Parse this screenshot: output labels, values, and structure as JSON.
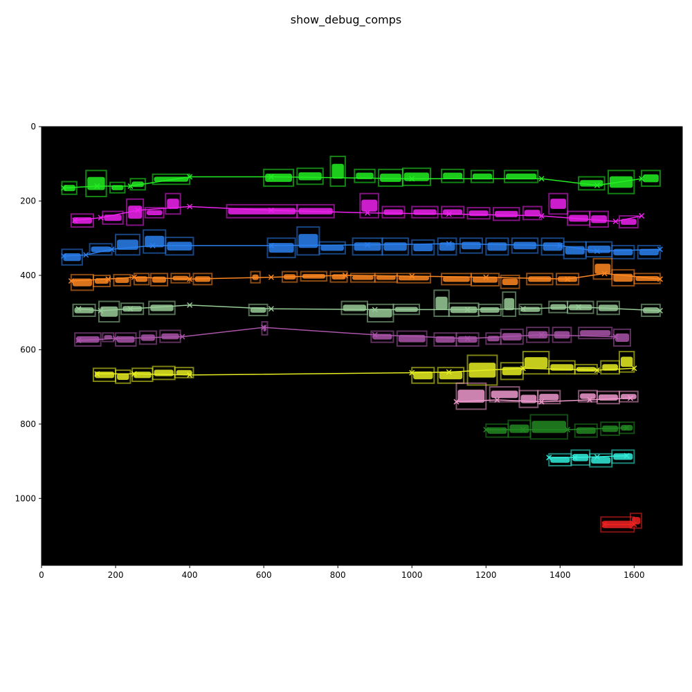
{
  "chart_data": {
    "type": "scatter",
    "title": "show_debug_comps",
    "xlabel": "",
    "ylabel": "",
    "xlim": [
      0,
      1730
    ],
    "ylim": [
      1180,
      0
    ],
    "y_inverted": true,
    "grid": false,
    "background": "#000000",
    "x_ticks": [
      0,
      200,
      400,
      600,
      800,
      1000,
      1200,
      1400,
      1600
    ],
    "y_ticks": [
      0,
      200,
      400,
      600,
      800,
      1000
    ],
    "lines": [
      {
        "color": "#22ee22",
        "points": [
          [
            60,
            165
          ],
          [
            150,
            160
          ],
          [
            240,
            160
          ],
          [
            400,
            135
          ],
          [
            620,
            135
          ],
          [
            1000,
            140
          ],
          [
            1350,
            140
          ],
          [
            1500,
            158
          ],
          [
            1620,
            140
          ]
        ],
        "boxes": [
          [
            55,
            148,
            95,
            182
          ],
          [
            120,
            118,
            175,
            188
          ],
          [
            185,
            150,
            225,
            178
          ],
          [
            240,
            140,
            280,
            170
          ],
          [
            300,
            128,
            400,
            155
          ],
          [
            600,
            115,
            680,
            160
          ],
          [
            690,
            112,
            760,
            155
          ],
          [
            780,
            80,
            820,
            160
          ],
          [
            845,
            115,
            900,
            150
          ],
          [
            910,
            115,
            975,
            160
          ],
          [
            975,
            112,
            1050,
            158
          ],
          [
            1080,
            115,
            1140,
            150
          ],
          [
            1160,
            118,
            1220,
            150
          ],
          [
            1250,
            118,
            1340,
            150
          ],
          [
            1450,
            135,
            1520,
            170
          ],
          [
            1530,
            118,
            1600,
            180
          ],
          [
            1620,
            118,
            1670,
            160
          ]
        ]
      },
      {
        "color": "#ee22ee",
        "points": [
          [
            90,
            252
          ],
          [
            160,
            245
          ],
          [
            260,
            225
          ],
          [
            400,
            215
          ],
          [
            620,
            225
          ],
          [
            880,
            232
          ],
          [
            1100,
            235
          ],
          [
            1350,
            240
          ],
          [
            1550,
            255
          ],
          [
            1620,
            240
          ]
        ],
        "boxes": [
          [
            80,
            235,
            140,
            270
          ],
          [
            165,
            228,
            220,
            262
          ],
          [
            230,
            195,
            275,
            265
          ],
          [
            280,
            218,
            330,
            245
          ],
          [
            335,
            180,
            375,
            235
          ],
          [
            500,
            210,
            690,
            245
          ],
          [
            690,
            210,
            790,
            245
          ],
          [
            860,
            180,
            910,
            245
          ],
          [
            920,
            215,
            980,
            245
          ],
          [
            1000,
            215,
            1070,
            245
          ],
          [
            1080,
            215,
            1140,
            245
          ],
          [
            1150,
            218,
            1210,
            248
          ],
          [
            1220,
            218,
            1290,
            252
          ],
          [
            1300,
            215,
            1350,
            250
          ],
          [
            1370,
            180,
            1420,
            235
          ],
          [
            1420,
            228,
            1480,
            265
          ],
          [
            1480,
            228,
            1530,
            270
          ],
          [
            1560,
            240,
            1610,
            272
          ]
        ]
      },
      {
        "color": "#2a80ee",
        "points": [
          [
            60,
            348
          ],
          [
            120,
            345
          ],
          [
            190,
            330
          ],
          [
            300,
            320
          ],
          [
            620,
            320
          ],
          [
            880,
            318
          ],
          [
            1100,
            315
          ],
          [
            1400,
            320
          ],
          [
            1500,
            335
          ],
          [
            1670,
            330
          ]
        ],
        "boxes": [
          [
            55,
            330,
            110,
            372
          ],
          [
            130,
            315,
            190,
            345
          ],
          [
            200,
            290,
            265,
            345
          ],
          [
            275,
            278,
            335,
            340
          ],
          [
            335,
            298,
            410,
            345
          ],
          [
            610,
            300,
            685,
            352
          ],
          [
            690,
            270,
            750,
            345
          ],
          [
            750,
            310,
            820,
            342
          ],
          [
            840,
            300,
            920,
            345
          ],
          [
            920,
            300,
            990,
            345
          ],
          [
            1000,
            305,
            1060,
            345
          ],
          [
            1070,
            300,
            1120,
            345
          ],
          [
            1130,
            300,
            1190,
            340
          ],
          [
            1200,
            300,
            1260,
            345
          ],
          [
            1270,
            300,
            1340,
            340
          ],
          [
            1350,
            300,
            1410,
            345
          ],
          [
            1410,
            310,
            1470,
            355
          ],
          [
            1470,
            310,
            1540,
            350
          ],
          [
            1540,
            320,
            1600,
            355
          ],
          [
            1610,
            320,
            1670,
            355
          ]
        ]
      },
      {
        "color": "#ff8822",
        "points": [
          [
            80,
            415
          ],
          [
            180,
            410
          ],
          [
            250,
            405
          ],
          [
            400,
            410
          ],
          [
            620,
            405
          ],
          [
            820,
            400
          ],
          [
            1000,
            402
          ],
          [
            1200,
            405
          ],
          [
            1420,
            410
          ],
          [
            1520,
            395
          ],
          [
            1670,
            410
          ]
        ],
        "boxes": [
          [
            80,
            398,
            140,
            440
          ],
          [
            140,
            400,
            185,
            430
          ],
          [
            195,
            398,
            240,
            428
          ],
          [
            250,
            395,
            290,
            425
          ],
          [
            295,
            395,
            340,
            428
          ],
          [
            350,
            395,
            400,
            420
          ],
          [
            410,
            395,
            460,
            425
          ],
          [
            565,
            390,
            590,
            420
          ],
          [
            650,
            390,
            690,
            418
          ],
          [
            700,
            390,
            770,
            415
          ],
          [
            780,
            390,
            825,
            418
          ],
          [
            835,
            395,
            900,
            418
          ],
          [
            900,
            395,
            960,
            418
          ],
          [
            960,
            395,
            1050,
            420
          ],
          [
            1080,
            395,
            1160,
            425
          ],
          [
            1160,
            395,
            1235,
            428
          ],
          [
            1240,
            400,
            1290,
            435
          ],
          [
            1310,
            395,
            1380,
            425
          ],
          [
            1390,
            395,
            1450,
            425
          ],
          [
            1490,
            355,
            1540,
            410
          ],
          [
            1540,
            385,
            1600,
            428
          ],
          [
            1600,
            395,
            1670,
            422
          ]
        ]
      },
      {
        "color": "#99cc99",
        "points": [
          [
            100,
            490
          ],
          [
            160,
            495
          ],
          [
            240,
            490
          ],
          [
            400,
            480
          ],
          [
            620,
            490
          ],
          [
            900,
            492
          ],
          [
            1150,
            492
          ],
          [
            1300,
            490
          ],
          [
            1450,
            485
          ],
          [
            1670,
            495
          ]
        ],
        "boxes": [
          [
            85,
            478,
            145,
            510
          ],
          [
            155,
            470,
            210,
            525
          ],
          [
            215,
            475,
            275,
            505
          ],
          [
            290,
            470,
            360,
            505
          ],
          [
            560,
            478,
            610,
            508
          ],
          [
            810,
            470,
            880,
            505
          ],
          [
            880,
            478,
            950,
            525
          ],
          [
            950,
            478,
            1020,
            505
          ],
          [
            1060,
            440,
            1100,
            510
          ],
          [
            1100,
            475,
            1180,
            510
          ],
          [
            1180,
            478,
            1240,
            508
          ],
          [
            1245,
            445,
            1280,
            510
          ],
          [
            1290,
            478,
            1350,
            505
          ],
          [
            1370,
            470,
            1420,
            500
          ],
          [
            1420,
            470,
            1490,
            502
          ],
          [
            1500,
            470,
            1560,
            505
          ],
          [
            1620,
            478,
            1670,
            510
          ]
        ]
      },
      {
        "color": "#aa55aa",
        "points": [
          [
            100,
            575
          ],
          [
            200,
            570
          ],
          [
            380,
            565
          ],
          [
            600,
            540
          ],
          [
            900,
            560
          ],
          [
            1150,
            570
          ],
          [
            1350,
            560
          ],
          [
            1550,
            565
          ]
        ],
        "boxes": [
          [
            90,
            555,
            160,
            590
          ],
          [
            165,
            555,
            195,
            578
          ],
          [
            200,
            555,
            255,
            590
          ],
          [
            265,
            550,
            310,
            585
          ],
          [
            320,
            548,
            375,
            580
          ],
          [
            595,
            525,
            610,
            560
          ],
          [
            890,
            550,
            950,
            580
          ],
          [
            960,
            550,
            1040,
            590
          ],
          [
            1060,
            555,
            1120,
            590
          ],
          [
            1120,
            555,
            1180,
            590
          ],
          [
            1200,
            555,
            1240,
            585
          ],
          [
            1240,
            545,
            1300,
            585
          ],
          [
            1310,
            540,
            1370,
            580
          ],
          [
            1380,
            540,
            1430,
            580
          ],
          [
            1450,
            540,
            1540,
            570
          ],
          [
            1545,
            545,
            1590,
            590
          ]
        ]
      },
      {
        "color": "#e6ee22",
        "points": [
          [
            150,
            665
          ],
          [
            250,
            665
          ],
          [
            400,
            668
          ],
          [
            1000,
            662
          ],
          [
            1100,
            660
          ],
          [
            1300,
            650
          ],
          [
            1500,
            655
          ],
          [
            1600,
            650
          ]
        ],
        "boxes": [
          [
            140,
            650,
            200,
            685
          ],
          [
            200,
            655,
            240,
            690
          ],
          [
            245,
            650,
            300,
            685
          ],
          [
            300,
            645,
            360,
            680
          ],
          [
            360,
            648,
            410,
            675
          ],
          [
            1000,
            648,
            1060,
            690
          ],
          [
            1070,
            648,
            1140,
            690
          ],
          [
            1150,
            615,
            1230,
            695
          ],
          [
            1240,
            635,
            1300,
            680
          ],
          [
            1300,
            605,
            1370,
            665
          ],
          [
            1370,
            630,
            1440,
            665
          ],
          [
            1440,
            640,
            1500,
            665
          ],
          [
            1510,
            630,
            1560,
            665
          ],
          [
            1560,
            605,
            1600,
            660
          ]
        ]
      },
      {
        "color": "#ee99cc",
        "points": [
          [
            1120,
            740
          ],
          [
            1230,
            735
          ],
          [
            1350,
            740
          ],
          [
            1480,
            735
          ],
          [
            1590,
            730
          ]
        ],
        "boxes": [
          [
            1120,
            690,
            1200,
            760
          ],
          [
            1210,
            700,
            1290,
            740
          ],
          [
            1290,
            710,
            1340,
            755
          ],
          [
            1340,
            710,
            1400,
            745
          ],
          [
            1450,
            710,
            1500,
            740
          ],
          [
            1500,
            712,
            1560,
            745
          ],
          [
            1560,
            712,
            1610,
            740
          ]
        ]
      },
      {
        "color": "#228822",
        "points": [
          [
            1200,
            815
          ],
          [
            1300,
            815
          ],
          [
            1420,
            815
          ],
          [
            1580,
            810
          ]
        ],
        "boxes": [
          [
            1200,
            800,
            1260,
            835
          ],
          [
            1260,
            790,
            1320,
            835
          ],
          [
            1320,
            775,
            1420,
            840
          ],
          [
            1440,
            800,
            1500,
            835
          ],
          [
            1510,
            795,
            1560,
            830
          ],
          [
            1560,
            795,
            1600,
            825
          ]
        ]
      },
      {
        "color": "#33eedd",
        "points": [
          [
            1370,
            890
          ],
          [
            1440,
            890
          ],
          [
            1500,
            888
          ],
          [
            1580,
            885
          ]
        ],
        "boxes": [
          [
            1370,
            880,
            1430,
            912
          ],
          [
            1430,
            870,
            1480,
            910
          ],
          [
            1480,
            880,
            1540,
            915
          ],
          [
            1540,
            870,
            1600,
            905
          ]
        ]
      },
      {
        "color": "#ee2222",
        "points": [
          [
            1520,
            1070
          ],
          [
            1600,
            1070
          ]
        ],
        "boxes": [
          [
            1510,
            1050,
            1600,
            1090
          ],
          [
            1590,
            1040,
            1620,
            1080
          ]
        ]
      }
    ]
  }
}
